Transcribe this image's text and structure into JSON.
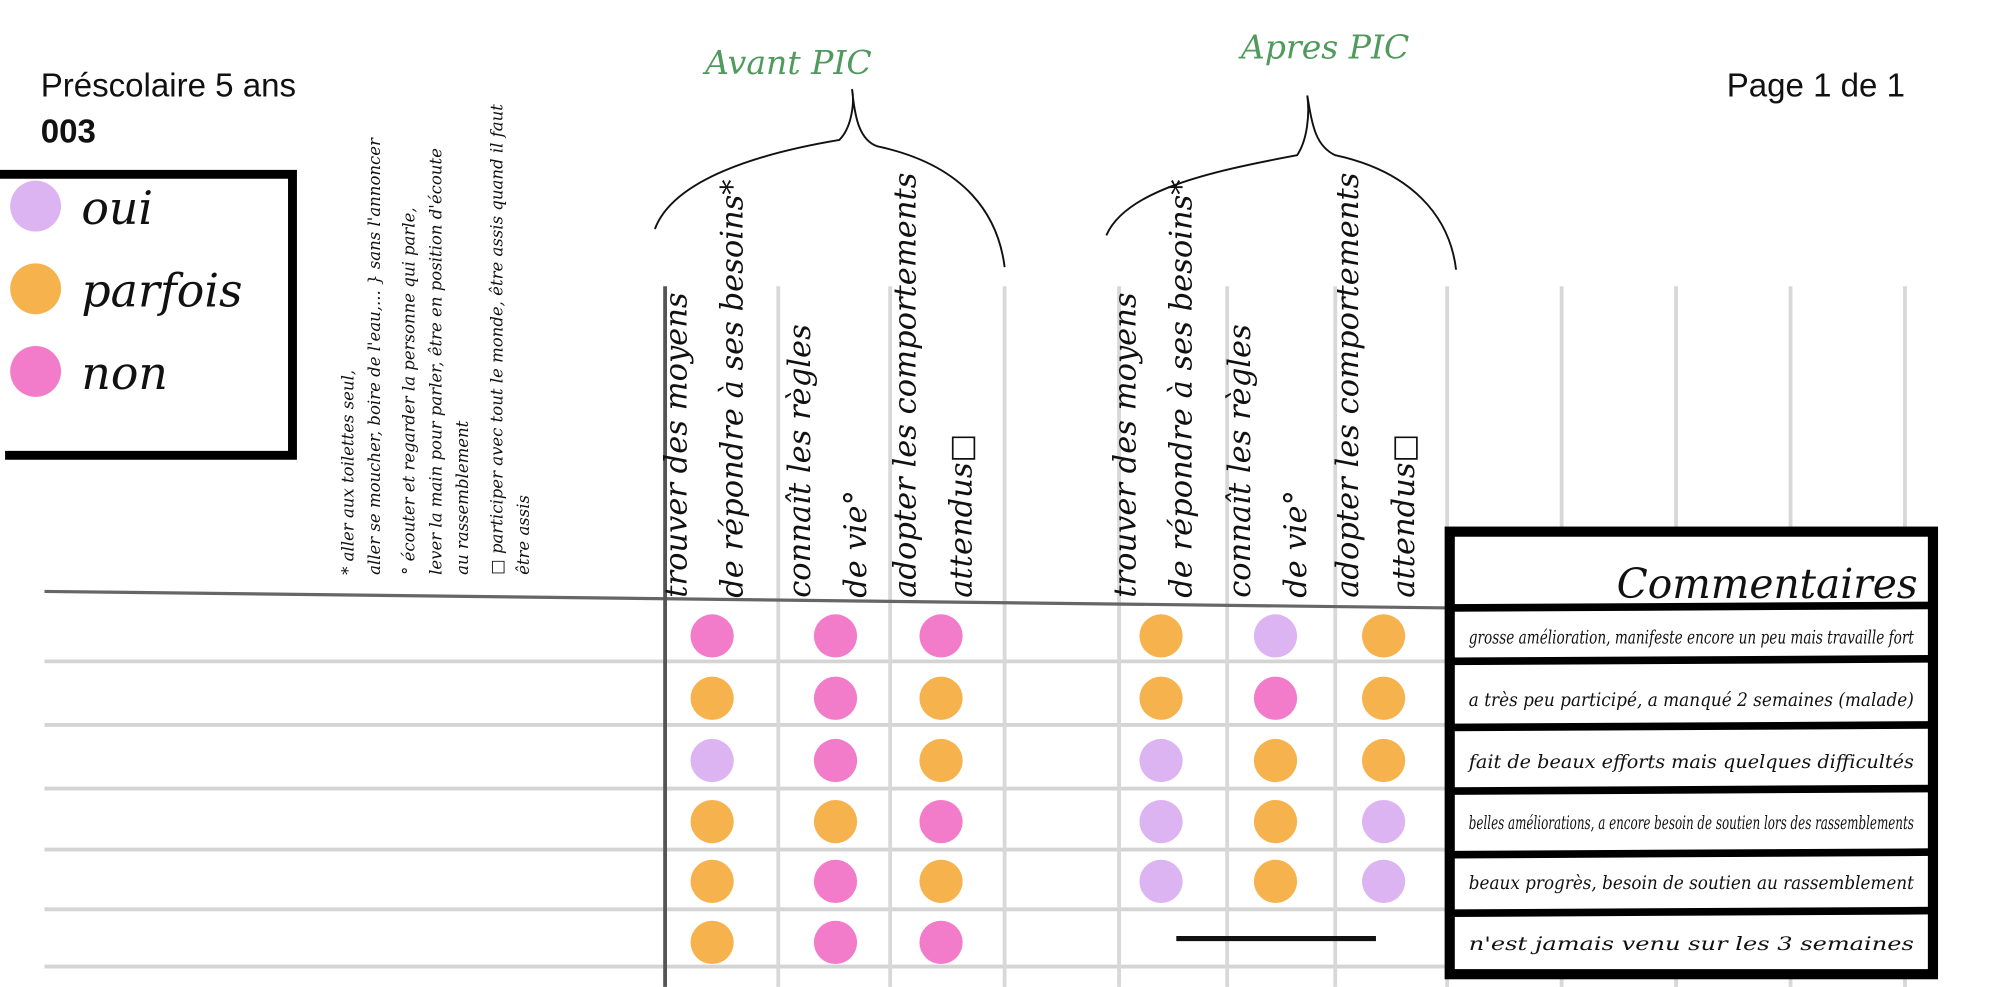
{
  "header": {
    "title": "Préscolaire 5 ans",
    "code": "003",
    "page": "Page 1 de 1"
  },
  "legend": [
    {
      "label": "oui",
      "color": "#dcb4f2"
    },
    {
      "label": "parfois",
      "color": "#f6b24c"
    },
    {
      "label": "non",
      "color": "#f27cc9"
    }
  ],
  "footnotes": [
    [
      "* aller aux toilettes seul,",
      "aller se moucher, boire de l'eau,... } sans l'annoncer"
    ],
    [
      "° écouter et regarder la personne qui parle,",
      "lever la main pour parler, être en position d'écoute",
      "au rassemblement"
    ],
    [
      "□ participer avec tout le monde, être assis quand il faut",
      "être assis"
    ]
  ],
  "groups": [
    {
      "label": "Avant PIC",
      "columns": [
        [
          "trouver des moyens",
          "de répondre à ses besoins*"
        ],
        [
          "connaît les règles",
          "de vie°"
        ],
        [
          "adopter les comportements",
          "attendus□"
        ]
      ]
    },
    {
      "label": "Apres PIC",
      "columns": [
        [
          "trouver des moyens",
          "de répondre à ses besoins*"
        ],
        [
          "connaît les règles",
          "de vie°"
        ],
        [
          "adopter les comportements",
          "attendus□"
        ]
      ]
    }
  ],
  "comments_title": "Commentaires",
  "rows": [
    {
      "avant": [
        "non",
        "non",
        "non"
      ],
      "apres": [
        "parfois",
        "oui",
        "parfois"
      ],
      "comment": "grosse amélioration, manifeste encore un peu mais travaille fort"
    },
    {
      "avant": [
        "parfois",
        "non",
        "parfois"
      ],
      "apres": [
        "parfois",
        "non",
        "parfois"
      ],
      "comment": "a très peu participé, a manqué 2 semaines (malade)"
    },
    {
      "avant": [
        "oui",
        "non",
        "parfois"
      ],
      "apres": [
        "oui",
        "parfois",
        "parfois"
      ],
      "comment": "fait de beaux efforts mais quelques difficultés"
    },
    {
      "avant": [
        "parfois",
        "parfois",
        "non"
      ],
      "apres": [
        "oui",
        "parfois",
        "oui"
      ],
      "comment": "belles améliorations, a encore besoin de soutien lors des rassemblements"
    },
    {
      "avant": [
        "parfois",
        "non",
        "parfois"
      ],
      "apres": [
        "oui",
        "parfois",
        "oui"
      ],
      "comment": "beaux progrès, besoin de soutien au rassemblement"
    },
    {
      "avant": [
        "parfois",
        "non",
        "non"
      ],
      "apres": [
        null,
        null,
        null
      ],
      "comment": "n'est jamais venu sur les 3 semaines"
    }
  ]
}
